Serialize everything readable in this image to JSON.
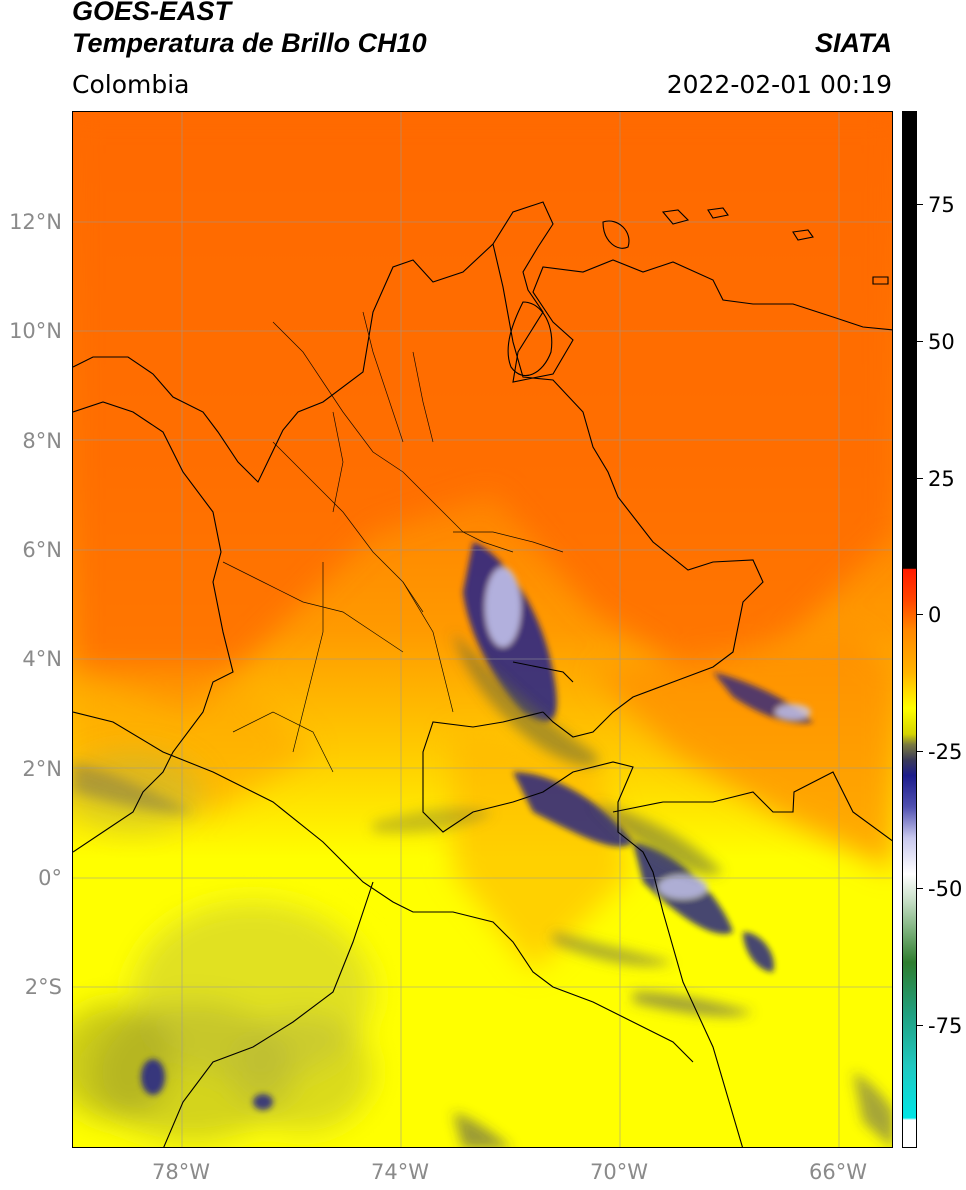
{
  "header": {
    "satellite": "GOES-EAST",
    "product": "Temperatura de Brillo CH10",
    "organization": "SIATA",
    "region": "Colombia",
    "datetime": "2022-02-01 00:19"
  },
  "map": {
    "lat_labels": [
      "12°N",
      "10°N",
      "8°N",
      "6°N",
      "4°N",
      "2°N",
      "0°",
      "2°S"
    ],
    "lon_labels": [
      "78°W",
      "74°W",
      "70°W",
      "66°W"
    ]
  },
  "colorbar": {
    "tick_labels": [
      "75",
      "50",
      "25",
      "0",
      "-25",
      "-50",
      "-75"
    ],
    "colors": {
      "hot": "#ff6a00",
      "orange": "#ff9900",
      "yellow": "#ffff00",
      "olive": "#9a9a2a",
      "navy": "#1c1c8c",
      "lavender": "#c8c8ee",
      "green": "#2e7d2e",
      "teal": "#20b2aa",
      "cyan": "#00e5e5",
      "red": "#ff1a00",
      "black": "#000000"
    }
  }
}
